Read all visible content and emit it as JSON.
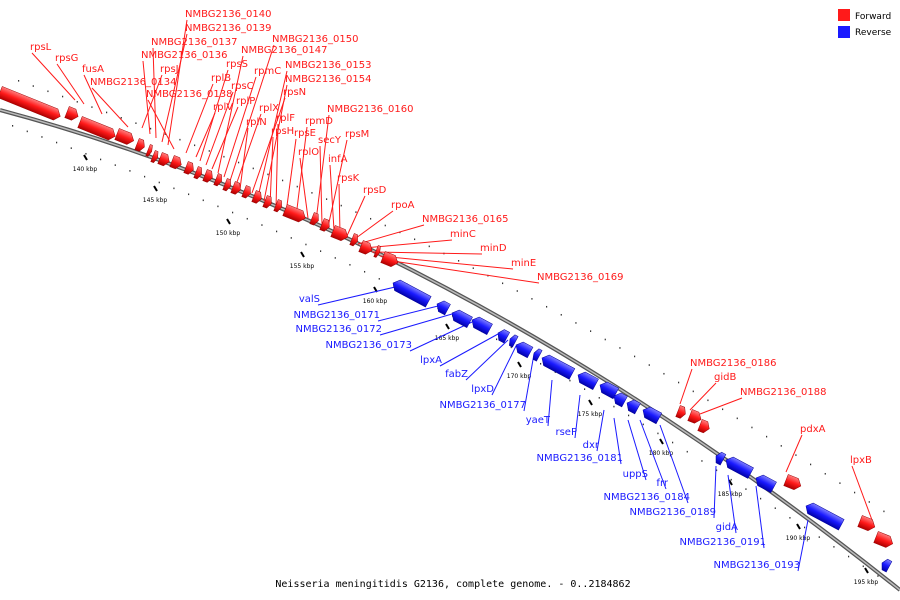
{
  "legend": {
    "forward": "Forward",
    "reverse": "Reverse"
  },
  "colors": {
    "forward": "#ff1a1a",
    "reverse": "#1a1aff",
    "axis": "#777777"
  },
  "caption": "Neisseria meningitidis G2136, complete genome. - 0..2184862",
  "ticks": [
    "140 kbp",
    "145 kbp",
    "150 kbp",
    "155 kbp",
    "160 kbp",
    "165 kbp",
    "170 kbp",
    "175 kbp",
    "180 kbp",
    "185 kbp",
    "190 kbp",
    "195 kbp"
  ],
  "forward_labels": [
    "rpsL",
    "rpsG",
    "fusA",
    "NMBG2136_0134",
    "rpsJ",
    "NMBG2136_0136",
    "NMBG2136_0137",
    "NMBG2136_0139",
    "NMBG2136_0140",
    "NMBG2136_0138",
    "rplB",
    "rplV",
    "rpsS",
    "rpsC",
    "rplP",
    "NMBG2136_0147",
    "rpmC",
    "NMBG2136_0150",
    "rplX",
    "rplN",
    "rpsN",
    "NMBG2136_0153",
    "NMBG2136_0154",
    "rpsH",
    "rplF",
    "rpsE",
    "rpmD",
    "rplO",
    "NMBG2136_0160",
    "secY",
    "rpsM",
    "infA",
    "rpsK",
    "rpsD",
    "rpoA",
    "NMBG2136_0165",
    "minC",
    "minD",
    "minE",
    "NMBG2136_0169",
    "NMBG2136_0186",
    "gidB",
    "NMBG2136_0188",
    "pdxA",
    "lpxB"
  ],
  "reverse_labels": [
    "valS",
    "NMBG2136_0171",
    "NMBG2136_0172",
    "NMBG2136_0173",
    "lpxA",
    "fabZ",
    "lpxD",
    "NMBG2136_0177",
    "yaeT",
    "rseP",
    "dxr",
    "NMBG2136_0181",
    "uppS",
    "frr",
    "NMBG2136_0184",
    "NMBG2136_0189",
    "gidA",
    "NMBG2136_0191",
    "NMBG2136_0193"
  ]
}
